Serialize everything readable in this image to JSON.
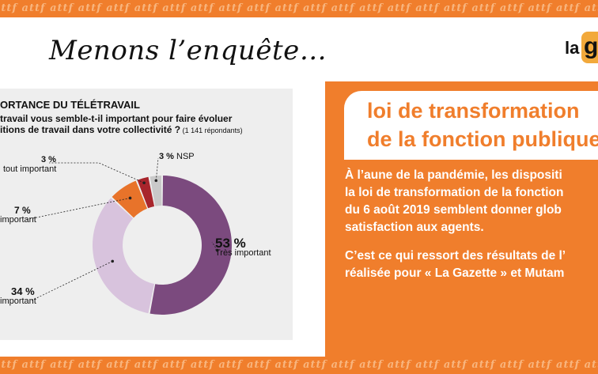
{
  "bands": {
    "pattern_word": "attf",
    "background_color": "#f07e2c",
    "text_color": "#f8b57e"
  },
  "headline": "Menons l’enquête…",
  "logo": {
    "prefix": "la",
    "letter": "g"
  },
  "chart": {
    "title": "ORTANCE DU TÉLÉTRAVAIL",
    "subtitle_line1": "travail vous semble-t-il important pour faire évoluer",
    "subtitle_line2": "itions de travail dans votre collectivité ?",
    "respondents": " (1 141 répondants)"
  },
  "chart_data": {
    "type": "pie",
    "donut": true,
    "title": "ORTANCE DU TÉLÉTRAVAIL",
    "slices": [
      {
        "label": "Très important",
        "value": 53,
        "display": "53 %",
        "color": "#7b4a7e"
      },
      {
        "label": "important",
        "value": 34,
        "display": "34 %",
        "color": "#d8c3dd"
      },
      {
        "label": "important",
        "value": 7,
        "display": "7 %",
        "color": "#e8732a"
      },
      {
        "label": "tout important",
        "value": 3,
        "display": "3 %",
        "color": "#a8252c"
      },
      {
        "label": "NSP",
        "value": 3,
        "display": "3 %",
        "color": "#c9c9c9"
      }
    ]
  },
  "article": {
    "title_line1": "loi de transformation",
    "title_line2": "de la fonction publique",
    "para1": [
      "À l’aune de la pandémie, les dispositi",
      "la loi de transformation de la fonction",
      "du 6 août 2019 semblent donner glob",
      "satisfaction aux agents."
    ],
    "para2": [
      "C’est ce qui ressort des résultats de l’",
      "réalisée pour « La Gazette » et Mutam"
    ],
    "accent_color": "#f07e2c"
  }
}
